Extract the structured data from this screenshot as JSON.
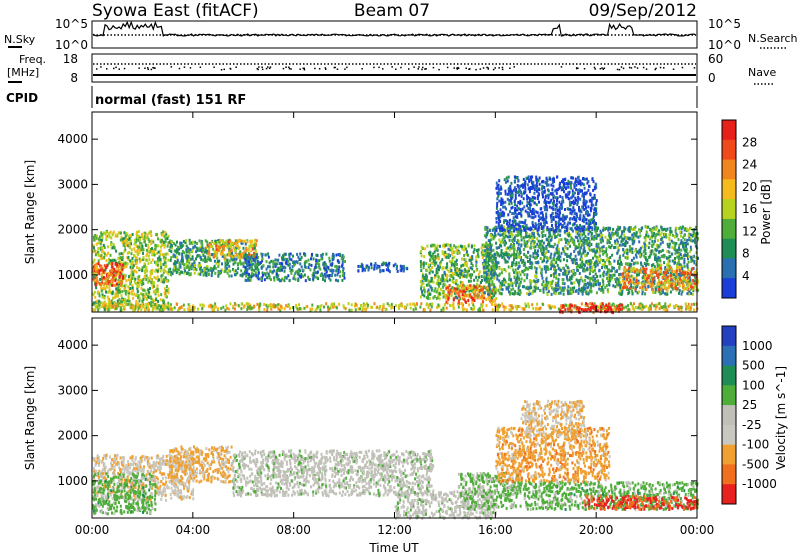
{
  "header": {
    "station": "Syowa East (fitACF)",
    "beam": "Beam 07",
    "date": "09/Sep/2012"
  },
  "strip1": {
    "left_label": "N.Sky",
    "right_label": "N.Search",
    "left_ticks": [
      "10^5",
      "10^0"
    ],
    "right_ticks": [
      "10^5",
      "10^0"
    ]
  },
  "strip2": {
    "left_label_line1": "Freq.",
    "left_label_line2": "[MHz]",
    "right_label": "Nave",
    "left_ticks": [
      "18",
      "8"
    ],
    "right_ticks": [
      "60",
      "0"
    ]
  },
  "cpid": {
    "label": "CPID",
    "text": "normal (fast) 151 RF"
  },
  "power_panel": {
    "ylabel": "Slant Range [km]",
    "colorbar_label": "Power [dB]",
    "colorbar_ticks": [
      "28",
      "24",
      "20",
      "16",
      "12",
      "8",
      "4"
    ],
    "colorbar_colors": [
      "#e8201a",
      "#f04a1a",
      "#f2861e",
      "#f5bb1e",
      "#b8d31e",
      "#4fae3a",
      "#1f8e55",
      "#2a6fb0",
      "#1a3fd8"
    ]
  },
  "velocity_panel": {
    "ylabel": "Slant Range [km]",
    "colorbar_label": "Velocity [m s^-1]",
    "colorbar_ticks": [
      "1000",
      "500",
      "100",
      "25",
      "-25",
      "-100",
      "-500",
      "-1000"
    ],
    "colorbar_colors": [
      "#2240c0",
      "#2c6fb5",
      "#1f8e55",
      "#4fae3a",
      "#c0c0b8",
      "#c8c8c0",
      "#f0a030",
      "#f07020",
      "#e82020"
    ]
  },
  "chart_data": [
    {
      "type": "heatmap",
      "title": "Power [dB]",
      "xlabel": "Time UT",
      "ylabel": "Slant Range [km]",
      "x_ticks": [
        "00:00",
        "04:00",
        "08:00",
        "12:00",
        "16:00",
        "20:00",
        "00:00"
      ],
      "xlim": [
        0,
        24
      ],
      "y_ticks": [
        1000,
        2000,
        3000,
        4000
      ],
      "ylim": [
        180,
        4600
      ],
      "scale": [
        4,
        30
      ],
      "regions": [
        {
          "t0": 0.0,
          "t1": 3.0,
          "r0": 250,
          "r1": 2000,
          "level": 16
        },
        {
          "t0": 0.0,
          "t1": 1.2,
          "r0": 800,
          "r1": 1300,
          "level": 26
        },
        {
          "t0": 0.0,
          "t1": 24.0,
          "r0": 250,
          "r1": 400,
          "level": 18
        },
        {
          "t0": 3.0,
          "t1": 6.5,
          "r0": 1000,
          "r1": 1800,
          "level": 12
        },
        {
          "t0": 4.5,
          "t1": 6.5,
          "r0": 1400,
          "r1": 1800,
          "level": 20
        },
        {
          "t0": 6.0,
          "t1": 10.0,
          "r0": 900,
          "r1": 1500,
          "level": 10
        },
        {
          "t0": 10.5,
          "t1": 12.5,
          "r0": 1100,
          "r1": 1300,
          "level": 6
        },
        {
          "t0": 13.0,
          "t1": 16.0,
          "r0": 500,
          "r1": 1700,
          "level": 14
        },
        {
          "t0": 14.0,
          "t1": 16.0,
          "r0": 400,
          "r1": 800,
          "level": 24
        },
        {
          "t0": 15.5,
          "t1": 24.0,
          "r0": 600,
          "r1": 2100,
          "level": 12
        },
        {
          "t0": 18.5,
          "t1": 21.0,
          "r0": 200,
          "r1": 400,
          "level": 28
        },
        {
          "t0": 21.0,
          "t1": 24.0,
          "r0": 700,
          "r1": 1200,
          "level": 22
        },
        {
          "t0": 16.0,
          "t1": 20.0,
          "r0": 2000,
          "r1": 3200,
          "level": 6
        }
      ]
    },
    {
      "type": "heatmap",
      "title": "Velocity [m s^-1]",
      "xlabel": "Time UT",
      "ylabel": "Slant Range [km]",
      "x_ticks": [
        "00:00",
        "04:00",
        "08:00",
        "12:00",
        "16:00",
        "20:00",
        "00:00"
      ],
      "xlim": [
        0,
        24
      ],
      "y_ticks": [
        1000,
        2000,
        3000,
        4000
      ],
      "ylim": [
        180,
        4600
      ],
      "scale": [
        -1000,
        1000
      ],
      "regions": [
        {
          "t0": 0.0,
          "t1": 4.0,
          "r0": 600,
          "r1": 1600,
          "level": -300
        },
        {
          "t0": 0.0,
          "t1": 2.5,
          "r0": 300,
          "r1": 1200,
          "level": 200
        },
        {
          "t0": 3.0,
          "t1": 5.5,
          "r0": 1000,
          "r1": 1800,
          "level": -400
        },
        {
          "t0": 5.5,
          "t1": 13.5,
          "r0": 700,
          "r1": 1700,
          "level": 0
        },
        {
          "t0": 12.0,
          "t1": 16.0,
          "r0": 200,
          "r1": 800,
          "level": 0
        },
        {
          "t0": 14.5,
          "t1": 17.0,
          "r0": 400,
          "r1": 1200,
          "level": 150
        },
        {
          "t0": 16.0,
          "t1": 20.5,
          "r0": 1000,
          "r1": 2200,
          "level": -450
        },
        {
          "t0": 17.0,
          "t1": 24.0,
          "r0": 400,
          "r1": 1000,
          "level": 200
        },
        {
          "t0": 19.5,
          "t1": 24.0,
          "r0": 400,
          "r1": 700,
          "level": -800
        },
        {
          "t0": 17.0,
          "t1": 19.5,
          "r0": 2000,
          "r1": 2800,
          "level": -300
        }
      ]
    }
  ]
}
